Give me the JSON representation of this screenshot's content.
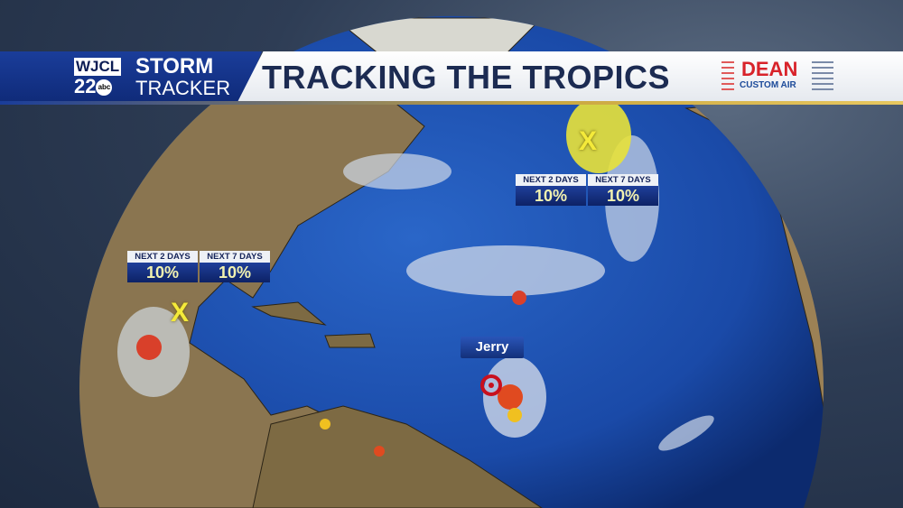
{
  "header": {
    "station_call": "WJCL",
    "channel": "22",
    "network": "abc",
    "brand_top": "STORM",
    "brand_bottom": "TRACKER",
    "title": "TRACKING THE TROPICS",
    "sponsor_name": "DEAN",
    "sponsor_sub": "CUSTOM AIR"
  },
  "outlooks": [
    {
      "area": "gulf",
      "cols": [
        {
          "label": "NEXT 2 DAYS",
          "value": "10%"
        },
        {
          "label": "NEXT 7 DAYS",
          "value": "10%"
        }
      ],
      "marker": "X"
    },
    {
      "area": "north-atlantic",
      "cols": [
        {
          "label": "NEXT 2 DAYS",
          "value": "10%"
        },
        {
          "label": "NEXT 7 DAYS",
          "value": "10%"
        }
      ],
      "marker": "X"
    }
  ],
  "storms": [
    {
      "name": "Jerry",
      "icon": "tropical-storm-icon"
    }
  ],
  "colors": {
    "brand_blue": "#1a3d9a",
    "title_text": "#1c2b52",
    "marker_yellow": "#f4ea3a",
    "sponsor_red": "#d8232a",
    "ocean": "#1d4fae"
  }
}
